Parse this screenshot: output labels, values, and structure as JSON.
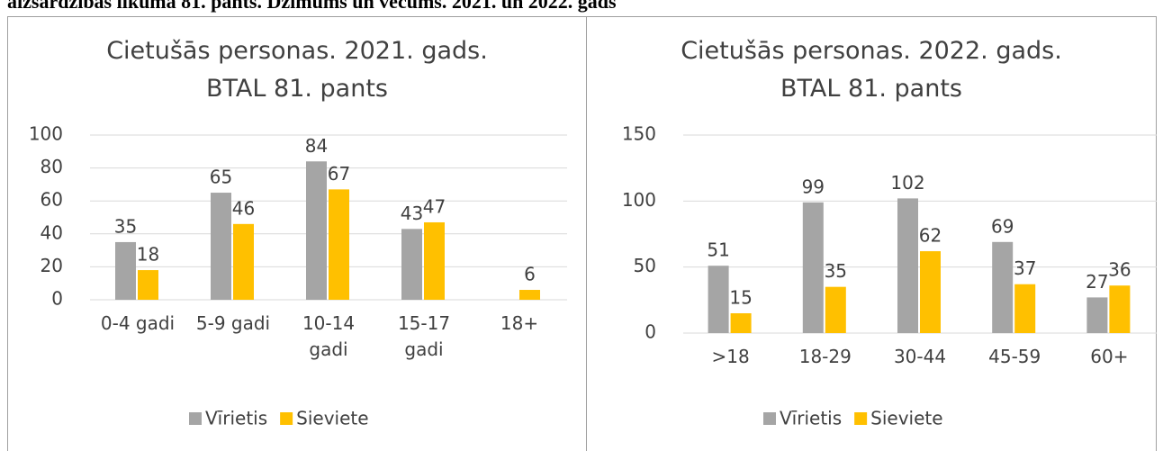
{
  "heading": "aizsardzības likuma 81. pants. Dzimums un vecums. 2021. un 2022. gads",
  "chart_data": [
    {
      "type": "bar",
      "title": "Cietušās personas. 2021. gads. BTAL 81. pants",
      "categories": [
        "0-4 gadi",
        "5-9 gadi",
        "10-14 gadi",
        "15-17 gadi",
        "18+"
      ],
      "series": [
        {
          "name": "Vīrietis",
          "color": "#a5a5a5",
          "values": [
            35,
            65,
            84,
            43,
            null
          ]
        },
        {
          "name": "Sieviete",
          "color": "#ffc000",
          "values": [
            18,
            46,
            67,
            47,
            6
          ]
        }
      ],
      "ylim": [
        0,
        100
      ],
      "yticks": [
        0,
        20,
        40,
        60,
        80,
        100
      ],
      "grid": true,
      "legend": "bottom"
    },
    {
      "type": "bar",
      "title": "Cietušās personas. 2022. gads. BTAL 81. pants",
      "categories": [
        ">18",
        "18-29",
        "30-44",
        "45-59",
        "60+"
      ],
      "series": [
        {
          "name": "Vīrietis",
          "color": "#a5a5a5",
          "values": [
            51,
            99,
            102,
            69,
            27
          ]
        },
        {
          "name": "Sieviete",
          "color": "#ffc000",
          "values": [
            15,
            35,
            62,
            37,
            36
          ]
        }
      ],
      "ylim": [
        0,
        150
      ],
      "yticks": [
        0,
        50,
        100,
        150
      ],
      "grid": true,
      "legend": "bottom"
    }
  ]
}
